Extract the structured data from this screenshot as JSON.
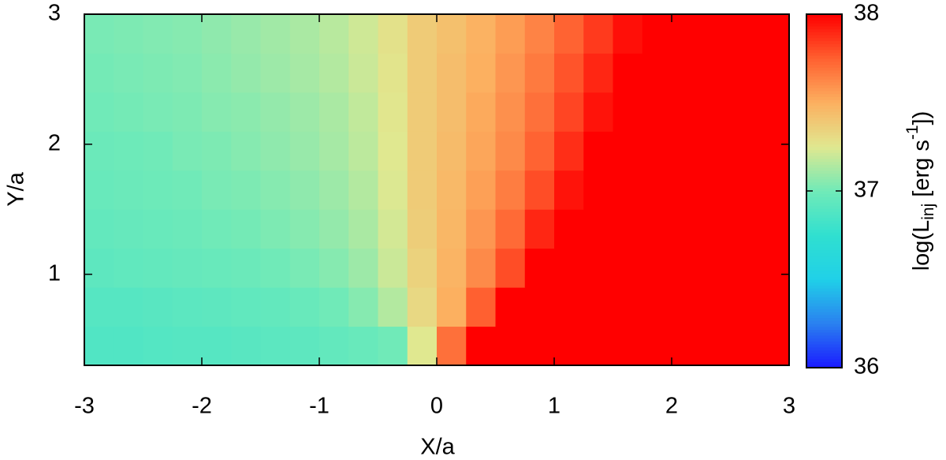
{
  "chart_data": {
    "type": "heatmap",
    "xlabel": "X/a",
    "ylabel": "Y/a",
    "colorbar_label": [
      "log(L",
      "inj",
      " [erg s",
      "-1",
      "])"
    ],
    "xlim": [
      -3,
      3
    ],
    "ylim": [
      0.3,
      3
    ],
    "xticks": [
      -3,
      -2,
      -1,
      0,
      1,
      2,
      3
    ],
    "yticks": [
      1,
      2,
      3
    ],
    "zlim": [
      36,
      38
    ],
    "zticks": [
      36,
      37,
      38
    ],
    "colormap": [
      "#1a1aff",
      "#2a80f0",
      "#20d0e8",
      "#30e0d0",
      "#70eab8",
      "#e0e890",
      "#fcb060",
      "#ff6030",
      "#ff0000"
    ],
    "x": [
      -2.875,
      -2.625,
      -2.375,
      -2.125,
      -1.875,
      -1.625,
      -1.375,
      -1.125,
      -0.875,
      -0.625,
      -0.375,
      -0.125,
      0.125,
      0.375,
      0.625,
      0.875,
      1.125,
      1.375,
      1.625,
      1.875,
      2.125,
      2.375,
      2.625,
      2.875
    ],
    "y": [
      0.45,
      0.75,
      1.05,
      1.35,
      1.65,
      1.95,
      2.25,
      2.55,
      2.85
    ],
    "z": [
      [
        36.88,
        36.88,
        36.89,
        36.9,
        36.9,
        36.91,
        36.92,
        36.93,
        36.95,
        36.97,
        37.0,
        37.25,
        37.7,
        38,
        38,
        38,
        38,
        38,
        38,
        38,
        38,
        38,
        38,
        38
      ],
      [
        36.9,
        36.9,
        36.91,
        36.92,
        36.93,
        36.94,
        36.95,
        36.97,
        37.0,
        37.05,
        37.15,
        37.32,
        37.5,
        37.75,
        38,
        38,
        38,
        38,
        38,
        38,
        38,
        38,
        38,
        38
      ],
      [
        36.93,
        36.94,
        36.95,
        36.96,
        36.97,
        36.98,
        37.0,
        37.02,
        37.05,
        37.1,
        37.2,
        37.35,
        37.48,
        37.62,
        37.8,
        38,
        38,
        38,
        38,
        38,
        38,
        38,
        38,
        38
      ],
      [
        36.95,
        36.96,
        36.97,
        36.98,
        37.0,
        37.01,
        37.03,
        37.05,
        37.08,
        37.13,
        37.22,
        37.37,
        37.47,
        37.58,
        37.72,
        37.9,
        38,
        38,
        38,
        38,
        38,
        38,
        38,
        38
      ],
      [
        36.97,
        36.98,
        36.99,
        37.0,
        37.02,
        37.03,
        37.05,
        37.07,
        37.1,
        37.15,
        37.24,
        37.38,
        37.46,
        37.55,
        37.66,
        37.8,
        37.95,
        38,
        38,
        38,
        38,
        38,
        38,
        38
      ],
      [
        36.98,
        36.99,
        37.0,
        37.02,
        37.03,
        37.05,
        37.07,
        37.09,
        37.12,
        37.17,
        37.25,
        37.38,
        37.45,
        37.53,
        37.62,
        37.74,
        37.88,
        38,
        38,
        38,
        38,
        38,
        38,
        38
      ],
      [
        37.0,
        37.01,
        37.02,
        37.03,
        37.05,
        37.06,
        37.08,
        37.1,
        37.13,
        37.18,
        37.26,
        37.38,
        37.44,
        37.52,
        37.6,
        37.7,
        37.82,
        37.95,
        38,
        38,
        38,
        38,
        38,
        38
      ],
      [
        37.01,
        37.02,
        37.03,
        37.04,
        37.06,
        37.08,
        37.1,
        37.12,
        37.15,
        37.2,
        37.27,
        37.38,
        37.44,
        37.5,
        37.58,
        37.67,
        37.78,
        37.9,
        38,
        38,
        38,
        38,
        38,
        38
      ],
      [
        37.02,
        37.03,
        37.04,
        37.05,
        37.07,
        37.09,
        37.11,
        37.13,
        37.16,
        37.21,
        37.28,
        37.38,
        37.43,
        37.49,
        37.56,
        37.64,
        37.74,
        37.85,
        37.96,
        38,
        38,
        38,
        38,
        38
      ]
    ]
  }
}
